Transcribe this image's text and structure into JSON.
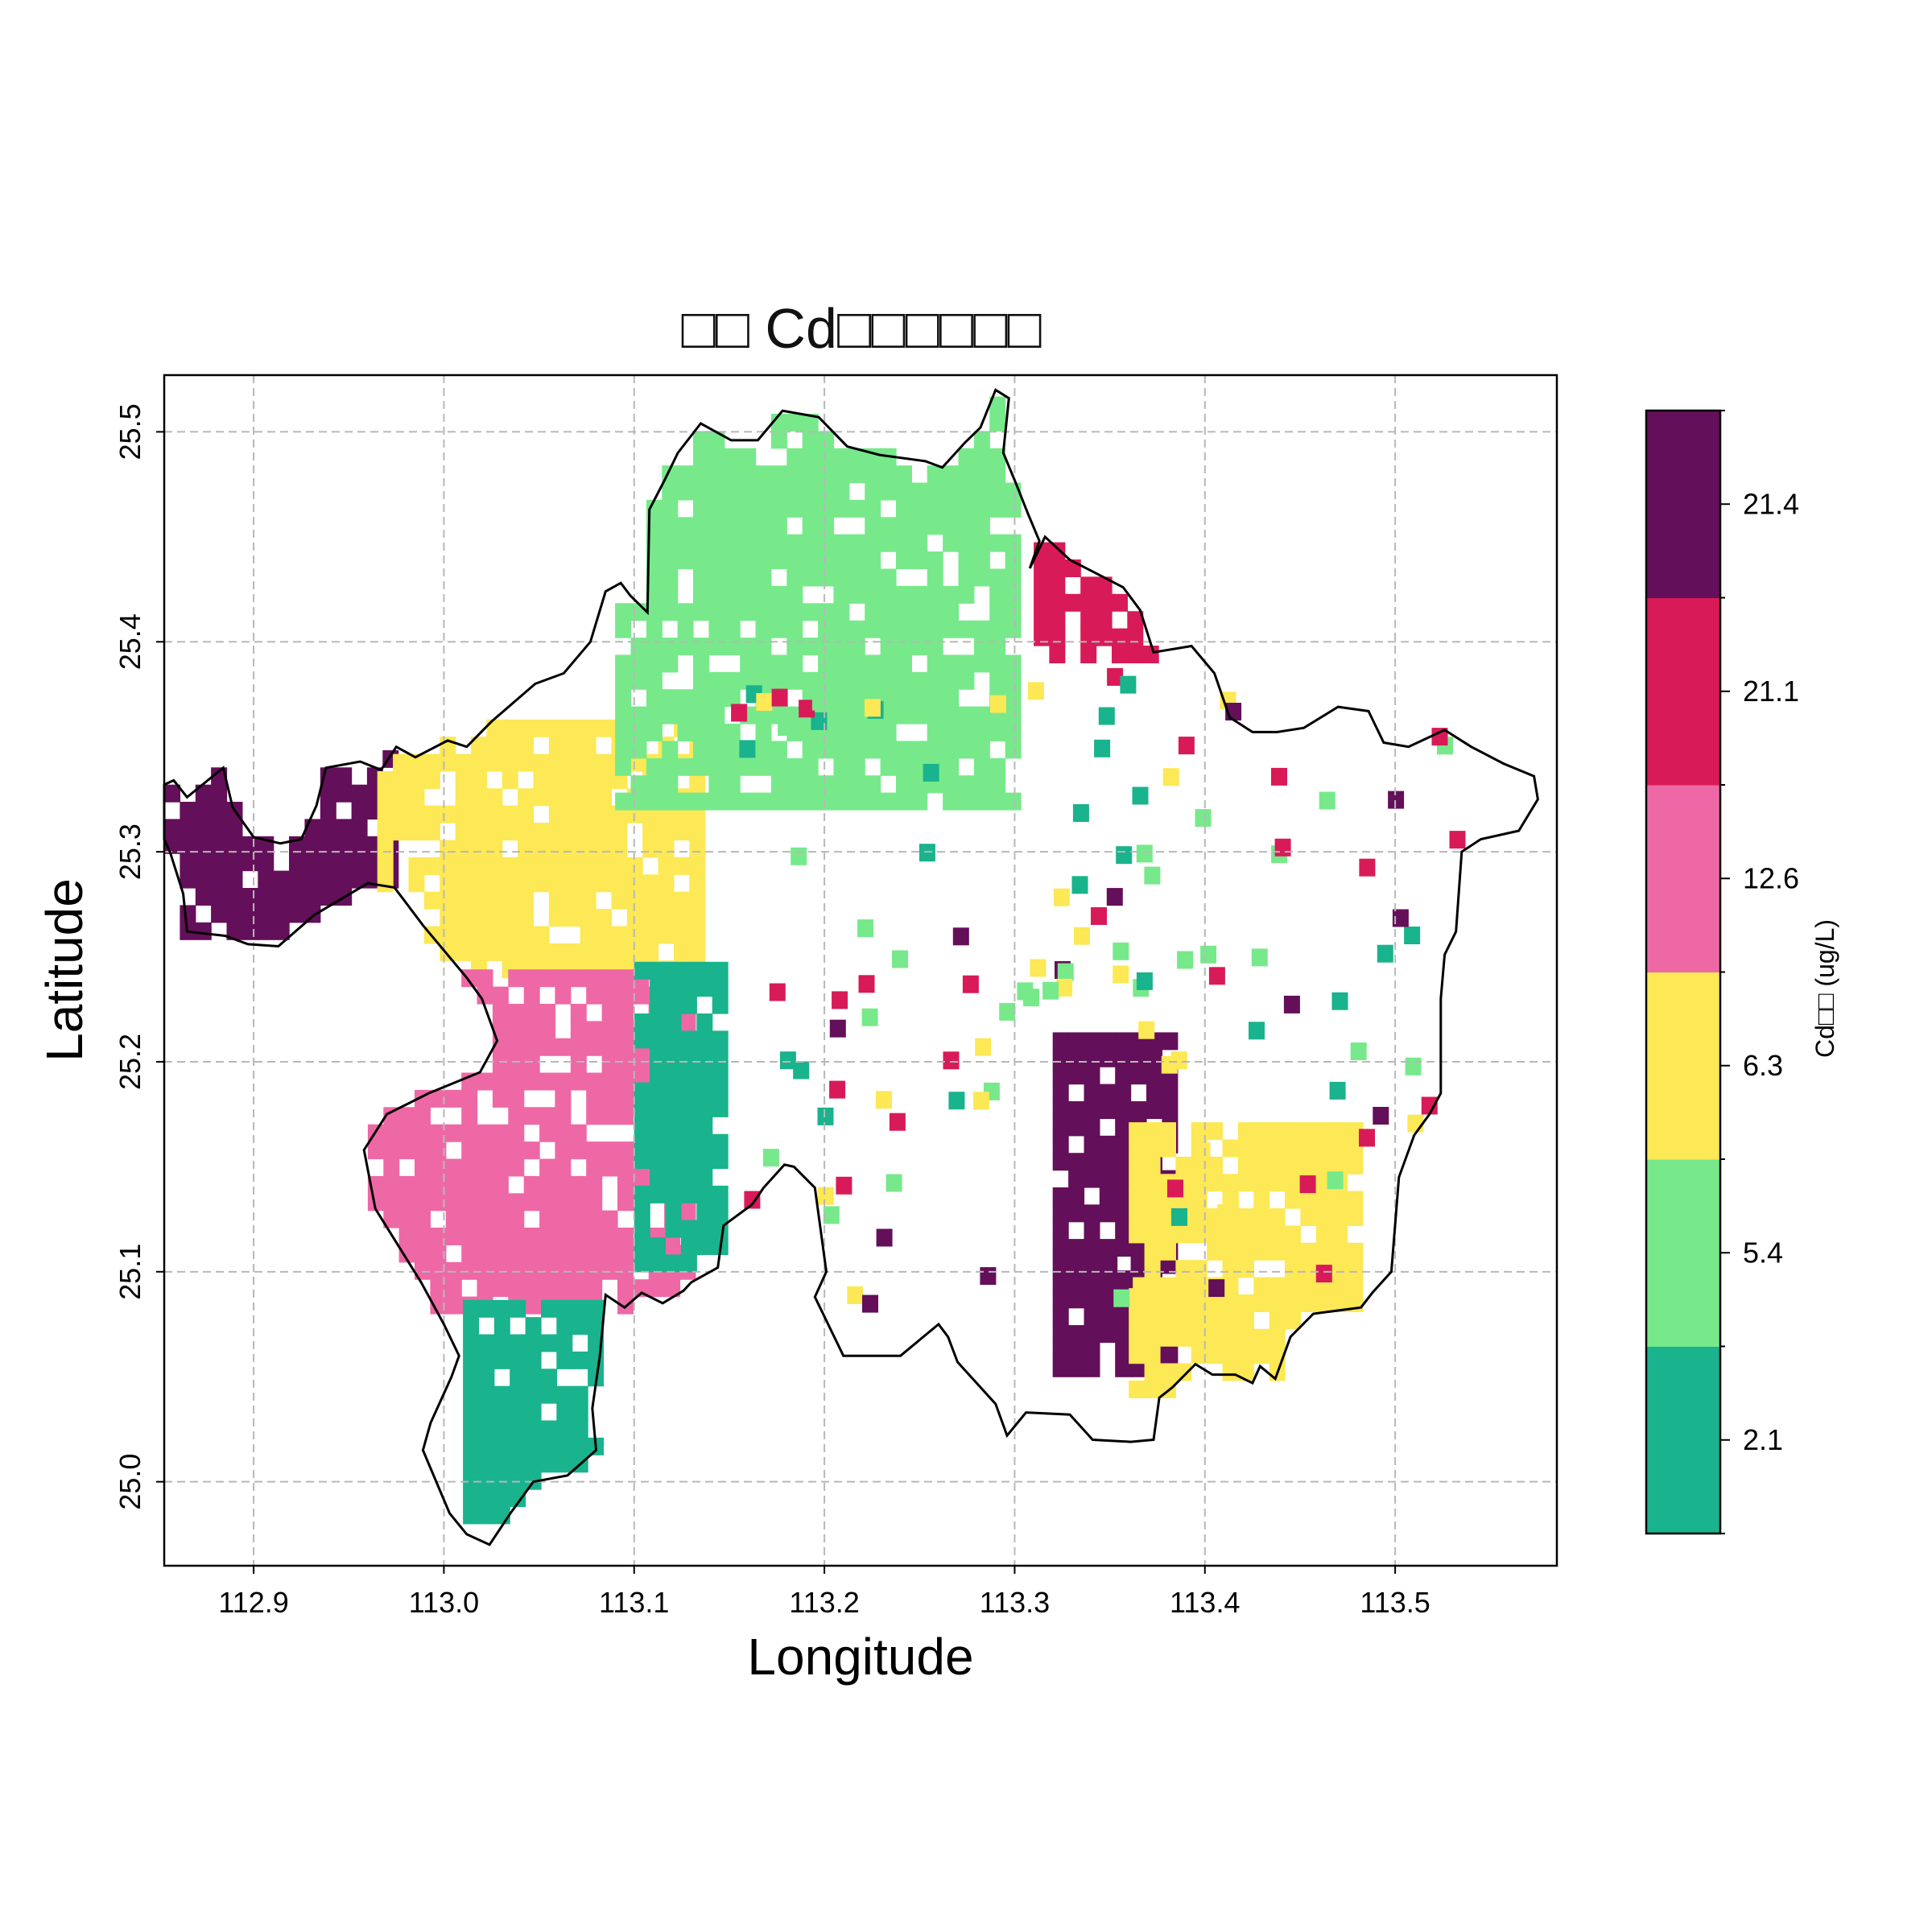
{
  "chart_data": {
    "type": "heatmap",
    "title": "□□ Cd□□□□□□",
    "xlabel": "Longitude",
    "ylabel": "Latitude",
    "xlim": [
      112.853,
      113.585
    ],
    "ylim": [
      24.96,
      25.527
    ],
    "xticks": [
      "112.9",
      "113.0",
      "113.1",
      "113.2",
      "113.3",
      "113.4",
      "113.5"
    ],
    "yticks": [
      "25.0",
      "25.1",
      "25.2",
      "25.3",
      "25.4",
      "25.5"
    ],
    "grid": true,
    "colorbar": {
      "label": "Cd□□ (ug/L)",
      "ticks": [
        "2.1",
        "5.4",
        "6.3",
        "12.6",
        "21.1",
        "21.4"
      ],
      "classes": [
        {
          "label": "2.1",
          "color": "#19b38d"
        },
        {
          "label": "5.4",
          "color": "#77e98b"
        },
        {
          "label": "6.3",
          "color": "#fde855"
        },
        {
          "label": "12.6",
          "color": "#ee68a6"
        },
        {
          "label": "21.1",
          "color": "#d81b58"
        },
        {
          "label": "21.4",
          "color": "#640f5a"
        }
      ]
    },
    "regions": [
      {
        "class": "21.4",
        "lon_range": [
          112.853,
          112.975
        ],
        "lat_range": [
          25.25,
          25.345
        ],
        "area": "west"
      },
      {
        "class": "6.3",
        "lon_range": [
          112.965,
          113.135
        ],
        "lat_range": [
          25.24,
          25.36
        ],
        "area": "west-central"
      },
      {
        "class": "5.4",
        "lon_range": [
          113.09,
          113.3
        ],
        "lat_range": [
          25.32,
          25.51
        ],
        "area": "north"
      },
      {
        "class": "12.6",
        "lon_range": [
          112.96,
          113.13
        ],
        "lat_range": [
          25.08,
          25.24
        ],
        "area": "southwest"
      },
      {
        "class": "2.1",
        "lon_range": [
          113.01,
          113.09
        ],
        "lat_range": [
          24.98,
          25.08
        ],
        "area": "south"
      },
      {
        "class": "2.1",
        "lon_range": [
          113.1,
          113.145
        ],
        "lat_range": [
          25.1,
          25.24
        ],
        "area": "central strip"
      },
      {
        "class": "21.1",
        "lon_range": [
          113.31,
          113.37
        ],
        "lat_range": [
          25.39,
          25.45
        ],
        "area": "northeast"
      },
      {
        "class": "21.4",
        "lon_range": [
          113.32,
          113.385
        ],
        "lat_range": [
          25.05,
          25.21
        ],
        "area": "southeast"
      },
      {
        "class": "6.3",
        "lon_range": [
          113.36,
          113.48
        ],
        "lat_range": [
          25.04,
          25.17
        ],
        "area": "southeast"
      }
    ]
  }
}
